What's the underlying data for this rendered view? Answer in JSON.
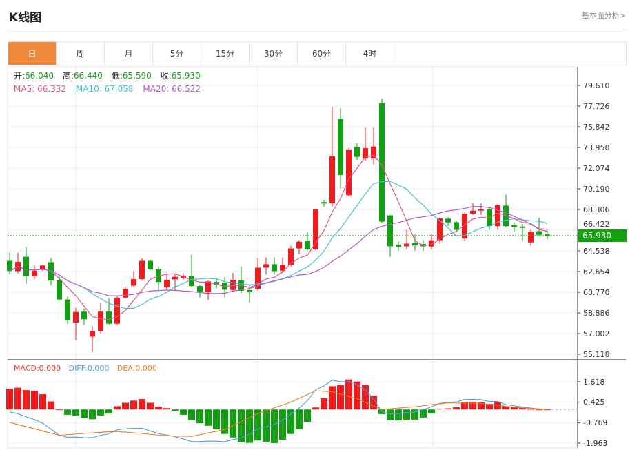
{
  "header": {
    "title": "K线图",
    "link": "基本面分析>"
  },
  "tabs": [
    {
      "label": "日",
      "active": true
    },
    {
      "label": "周"
    },
    {
      "label": "月"
    },
    {
      "label": "5分"
    },
    {
      "label": "15分"
    },
    {
      "label": "30分"
    },
    {
      "label": "60分"
    },
    {
      "label": "4时"
    }
  ],
  "ohlc": {
    "open_label": "开:",
    "open": "66.040",
    "high_label": "高:",
    "high": "66.440",
    "low_label": "低:",
    "low": "65.590",
    "close_label": "收:",
    "close": "65.930"
  },
  "ma": {
    "ma5": "MA5: 66.332",
    "ma10": "MA10: 67.058",
    "ma20": "MA20: 66.522"
  },
  "macd_legend": {
    "macd": "MACD:0.000",
    "diff": "DIFF:0.000",
    "dea": "DEA:0.000"
  },
  "colors": {
    "up": "#ee1c1c",
    "down": "#12a012",
    "ma5": "#e0558a",
    "ma10": "#3fc3d6",
    "ma20": "#b15bc4",
    "diff": "#4a9de0",
    "dea": "#f07a1e",
    "accent": "#f0893b"
  },
  "last_price": "65.930",
  "chart_data": [
    {
      "type": "candlestick",
      "price_ticks": [
        "79.610",
        "77.726",
        "75.842",
        "73.958",
        "72.074",
        "70.190",
        "68.306",
        "66.422",
        "64.538",
        "62.654",
        "60.770",
        "58.886",
        "57.002",
        "55.118"
      ],
      "ylim": [
        55.118,
        79.61
      ],
      "grid": true,
      "ohlc": [
        [
          63.63,
          64.37,
          62.38,
          62.69
        ],
        [
          62.69,
          64.37,
          62.48,
          63.53
        ],
        [
          64.0,
          64.9,
          61.54,
          62.23
        ],
        [
          62.23,
          63.2,
          61.96,
          62.73
        ],
        [
          62.8,
          63.3,
          62.7,
          63.2
        ],
        [
          63.5,
          63.9,
          61.4,
          61.85
        ],
        [
          61.85,
          62.3,
          60.0,
          60.1
        ],
        [
          60.1,
          60.4,
          57.9,
          58.2
        ],
        [
          58.0,
          59.34,
          56.41,
          58.97
        ],
        [
          59.0,
          59.3,
          57.77,
          58.3
        ],
        [
          56.72,
          57.66,
          55.33,
          57.24
        ],
        [
          57.24,
          59.76,
          57.04,
          59.0
        ],
        [
          59.0,
          60.18,
          57.83,
          57.9
        ],
        [
          57.9,
          60.39,
          57.77,
          60.28
        ],
        [
          60.28,
          61.23,
          60.18,
          61.06
        ],
        [
          61.37,
          62.69,
          61.23,
          61.96
        ],
        [
          61.96,
          63.85,
          61.86,
          63.63
        ],
        [
          63.63,
          63.74,
          62.77,
          62.86
        ],
        [
          62.86,
          63.1,
          60.9,
          61.7
        ],
        [
          61.2,
          62.5,
          60.97,
          61.9
        ],
        [
          61.94,
          62.5,
          60.97,
          62.17
        ],
        [
          62.06,
          62.5,
          61.9,
          62.27
        ],
        [
          62.27,
          64.2,
          61.23,
          61.33
        ],
        [
          61.33,
          61.43,
          60.28,
          60.8
        ],
        [
          60.76,
          61.86,
          60.07,
          61.75
        ],
        [
          61.7,
          62.06,
          61.1,
          61.44
        ],
        [
          61.65,
          62.17,
          60.28,
          61.0
        ],
        [
          60.97,
          62.52,
          60.85,
          61.9
        ],
        [
          61.86,
          63.1,
          60.7,
          60.9
        ],
        [
          60.97,
          61.44,
          59.8,
          60.76
        ],
        [
          61.06,
          63.85,
          60.97,
          63.0
        ],
        [
          63.0,
          63.95,
          62.38,
          63.32
        ],
        [
          63.32,
          63.95,
          62.38,
          62.69
        ],
        [
          62.73,
          63.95,
          62.5,
          63.26
        ],
        [
          63.28,
          65.0,
          63.1,
          64.75
        ],
        [
          64.75,
          65.5,
          64.26,
          65.37
        ],
        [
          65.45,
          66.25,
          64.58,
          64.68
        ],
        [
          64.68,
          68.35,
          64.58,
          68.3
        ],
        [
          68.98,
          69.2,
          68.56,
          68.85
        ],
        [
          68.87,
          77.66,
          68.56,
          73.16
        ],
        [
          76.55,
          77.56,
          70.23,
          71.44
        ],
        [
          69.6,
          73.9,
          69.5,
          73.75
        ],
        [
          74.0,
          74.31,
          72.85,
          73.1
        ],
        [
          72.95,
          75.78,
          72.74,
          73.9
        ],
        [
          72.95,
          75.78,
          72.37,
          74.04
        ],
        [
          78.0,
          78.4,
          67.1,
          67.2
        ],
        [
          67.76,
          67.82,
          64.0,
          64.95
        ],
        [
          65.1,
          65.4,
          64.53,
          64.9
        ],
        [
          64.95,
          66.46,
          64.68,
          65.2
        ],
        [
          65.28,
          66.1,
          64.58,
          65.03
        ],
        [
          65.16,
          65.5,
          64.53,
          64.95
        ],
        [
          64.93,
          66.1,
          64.68,
          65.5
        ],
        [
          65.5,
          67.6,
          65.2,
          67.5
        ],
        [
          67.47,
          67.6,
          66.8,
          67.13
        ],
        [
          67.15,
          67.3,
          66.2,
          66.46
        ],
        [
          65.66,
          68.03,
          65.45,
          67.93
        ],
        [
          67.93,
          68.87,
          67.82,
          68.2
        ],
        [
          68.2,
          68.87,
          67.82,
          68.3
        ],
        [
          68.3,
          68.45,
          66.46,
          66.8
        ],
        [
          66.78,
          68.77,
          66.46,
          68.72
        ],
        [
          68.66,
          69.65,
          66.67,
          66.78
        ],
        [
          66.88,
          67.13,
          66.25,
          66.71
        ],
        [
          66.75,
          66.98,
          65.45,
          66.63
        ],
        [
          65.31,
          66.46,
          65.0,
          66.29
        ],
        [
          66.33,
          67.55,
          65.87,
          66.0
        ],
        [
          66.04,
          66.44,
          65.59,
          65.93
        ]
      ]
    },
    {
      "type": "bar-line",
      "ticks": [
        "1.618",
        "0.425",
        "-0.769",
        "-1.963"
      ],
      "ylim": [
        -1.963,
        1.618
      ],
      "macd": [
        1.2,
        1.27,
        1.13,
        1.09,
        0.89,
        0.47,
        0,
        -0.31,
        -0.35,
        -0.5,
        -0.57,
        -0.35,
        -0.24,
        0.19,
        0.39,
        0.52,
        0.61,
        0.39,
        0.17,
        0.08,
        -0.07,
        -0.31,
        -0.61,
        -0.8,
        -0.95,
        -1.16,
        -1.43,
        -1.63,
        -1.89,
        -1.95,
        -1.81,
        -1.88,
        -1.96,
        -1.76,
        -1.43,
        -1.15,
        -0.72,
        0.12,
        0.65,
        1.36,
        1.43,
        1.75,
        1.63,
        1.43,
        0.8,
        -0.27,
        -0.61,
        -0.64,
        -0.61,
        -0.59,
        -0.47,
        -0.24,
        0.05,
        0.07,
        0.13,
        0.43,
        0.45,
        0.43,
        0.33,
        0.45,
        0.19,
        0.16,
        0.11,
        0.03,
        0,
        0
      ],
      "dea": [
        -0.75,
        -0.88,
        -1.0,
        -1.13,
        -1.25,
        -1.38,
        -1.5,
        -1.47,
        -1.43,
        -1.4,
        -1.36,
        -1.33,
        -1.3,
        -1.28,
        -1.32,
        -1.36,
        -1.4,
        -1.45,
        -1.49,
        -1.53,
        -1.55,
        -1.56,
        -1.57,
        -1.47,
        -1.37,
        -1.27,
        -1.17,
        -0.94,
        -0.71,
        -0.47,
        -0.24,
        -0.07,
        0.1,
        0.26,
        0.43,
        0.65,
        0.87,
        1.09,
        1.06,
        1.03,
        0.9,
        0.76,
        0.63,
        0.42,
        0.21,
        0,
        0.04,
        0.08,
        0.12,
        0.16,
        0.22,
        0.28,
        0.33,
        0.39,
        0.38,
        0.37,
        0.37,
        0.36,
        0.3,
        0.25,
        0.19,
        0.13,
        0.1,
        0.07,
        0.03,
        0
      ]
    }
  ]
}
